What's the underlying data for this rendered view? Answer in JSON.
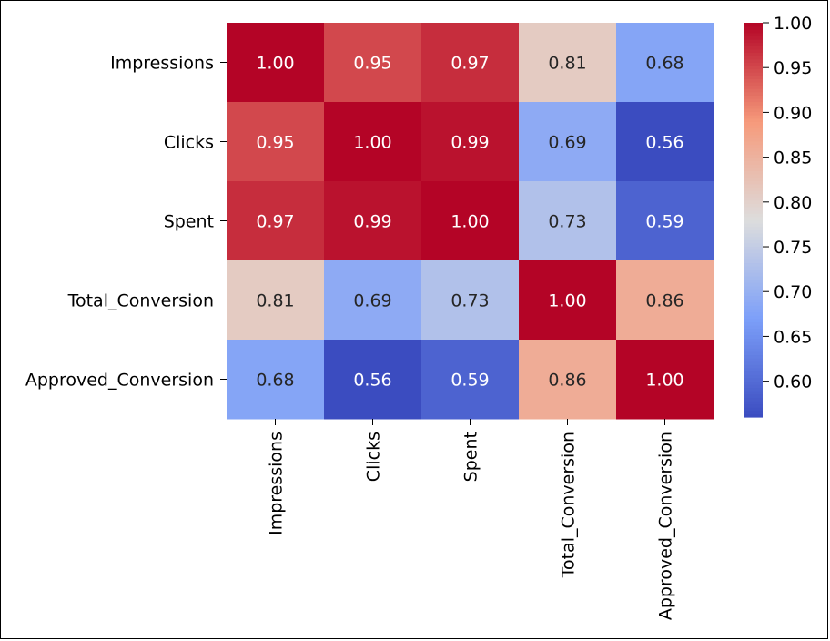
{
  "chart_data": {
    "type": "heatmap",
    "title": "",
    "xlabel": "",
    "ylabel": "",
    "row_labels": [
      "Impressions",
      "Clicks",
      "Spent",
      "Total_Conversion",
      "Approved_Conversion"
    ],
    "col_labels": [
      "Impressions",
      "Clicks",
      "Spent",
      "Total_Conversion",
      "Approved_Conversion"
    ],
    "values": [
      [
        1.0,
        0.95,
        0.97,
        0.81,
        0.68
      ],
      [
        0.95,
        1.0,
        0.99,
        0.69,
        0.56
      ],
      [
        0.97,
        0.99,
        1.0,
        0.73,
        0.59
      ],
      [
        0.81,
        0.69,
        0.73,
        1.0,
        0.86
      ],
      [
        0.68,
        0.56,
        0.59,
        0.86,
        1.0
      ]
    ],
    "colormap": "coolwarm",
    "vmin": 0.56,
    "vmax": 1.0,
    "annotation_format": "0.00",
    "colorbar": {
      "ticks": [
        0.6,
        0.65,
        0.7,
        0.75,
        0.8,
        0.85,
        0.9,
        0.95,
        1.0
      ],
      "tick_labels": [
        "0.60",
        "0.65",
        "0.70",
        "0.75",
        "0.80",
        "0.85",
        "0.90",
        "0.95",
        "1.00"
      ],
      "placement": "right"
    }
  }
}
